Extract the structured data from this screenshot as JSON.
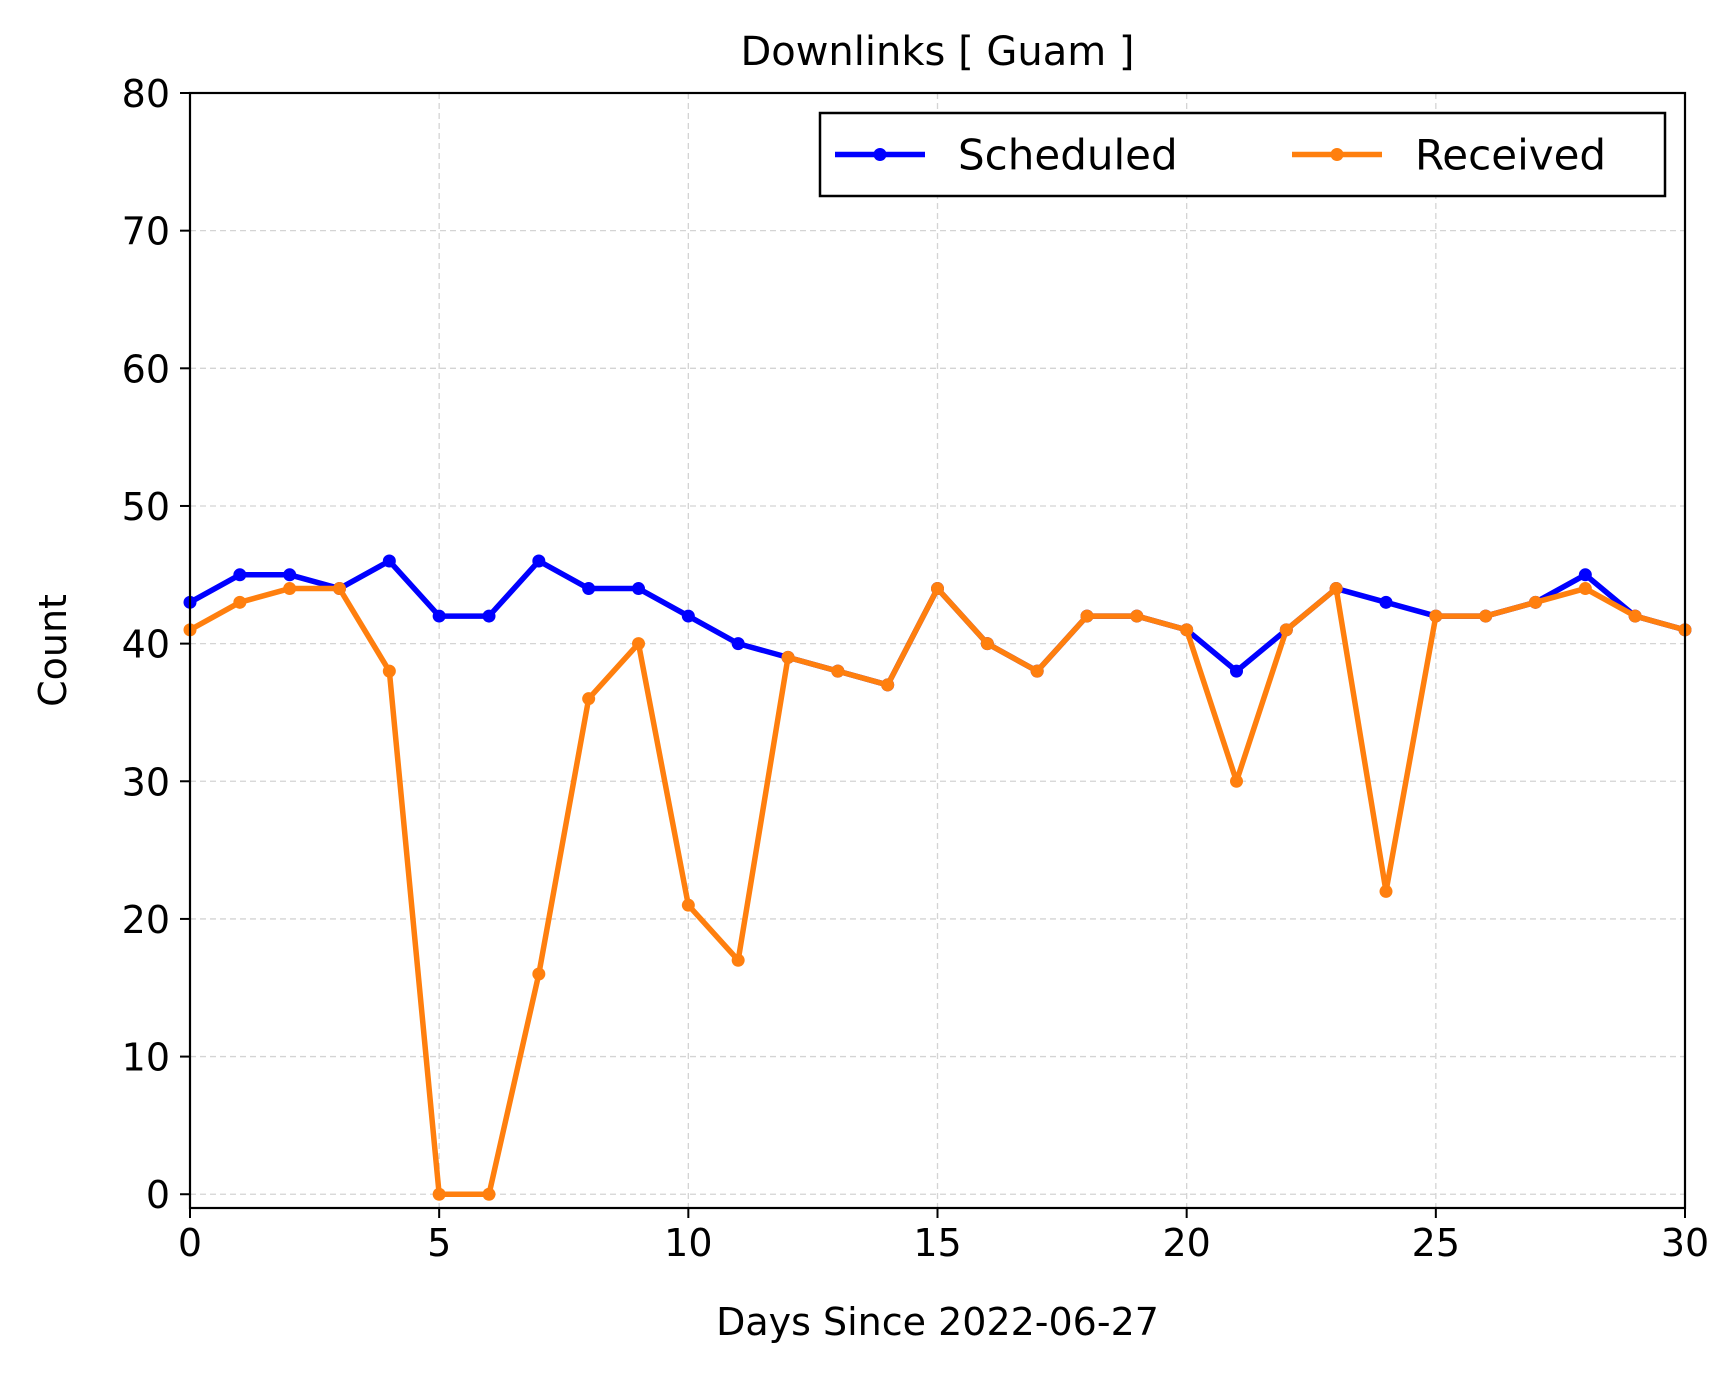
{
  "chart_data": {
    "type": "line",
    "title": "Downlinks [ Guam ]",
    "xlabel": "Days Since 2022-06-27",
    "ylabel": "Count",
    "xlim": [
      0,
      30
    ],
    "ylim": [
      -1,
      80
    ],
    "xticks": [
      0,
      5,
      10,
      15,
      20,
      25,
      30
    ],
    "yticks": [
      0,
      10,
      20,
      30,
      40,
      50,
      60,
      70,
      80
    ],
    "grid": true,
    "legend_position": "top-right",
    "x": [
      0,
      1,
      2,
      3,
      4,
      5,
      6,
      7,
      8,
      9,
      10,
      11,
      12,
      13,
      14,
      15,
      16,
      17,
      18,
      19,
      20,
      21,
      22,
      23,
      24,
      25,
      26,
      27,
      28,
      29,
      30
    ],
    "series": [
      {
        "name": "Scheduled",
        "color": "#0000ff",
        "values": [
          43,
          45,
          45,
          44,
          46,
          42,
          42,
          46,
          44,
          44,
          42,
          40,
          39,
          38,
          37,
          44,
          40,
          38,
          42,
          42,
          41,
          38,
          41,
          44,
          43,
          42,
          42,
          43,
          45,
          42,
          41
        ]
      },
      {
        "name": "Received",
        "color": "#ff7f0e",
        "values": [
          41,
          43,
          44,
          44,
          38,
          0,
          0,
          16,
          36,
          40,
          21,
          17,
          39,
          38,
          37,
          44,
          40,
          38,
          42,
          42,
          41,
          30,
          41,
          44,
          22,
          42,
          42,
          43,
          44,
          42,
          41
        ]
      }
    ]
  }
}
